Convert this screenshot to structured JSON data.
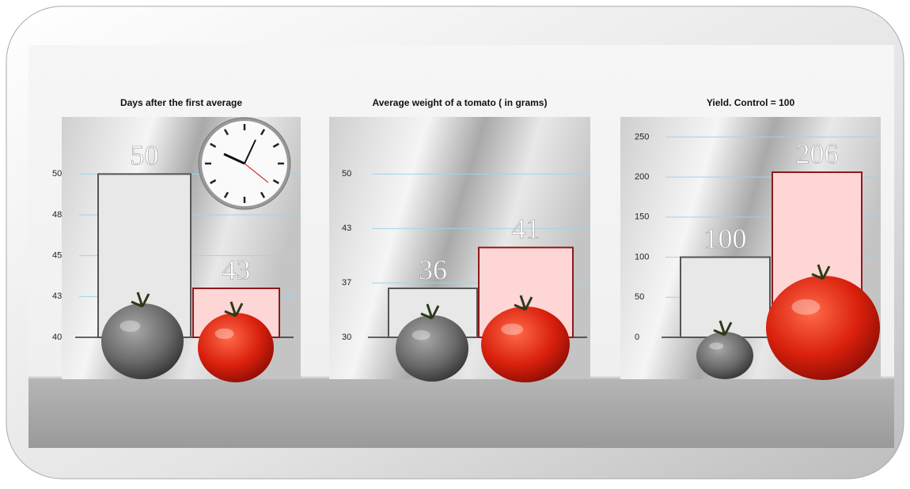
{
  "chart_data": [
    {
      "type": "bar",
      "title": "Days after the first average",
      "categories": [
        null,
        null
      ],
      "values": [
        50,
        43
      ],
      "colors": [
        "#e8e8e8",
        "#ffd6d6"
      ],
      "edge_colors": [
        "#555555",
        "#8b1a1a"
      ],
      "ylim": [
        40,
        53.5
      ],
      "yticks": [
        40,
        {
          "value": 42.5,
          "label": "43"
        },
        45,
        {
          "value": 47.5,
          "label": "48"
        },
        50
      ],
      "grid": true
    },
    {
      "type": "bar",
      "title": "Average weight of a tomato ( in grams)",
      "categories": [
        null,
        null
      ],
      "values": [
        36,
        41
      ],
      "colors": [
        "#e8e8e8",
        "#ffd6d6"
      ],
      "edge_colors": [
        "#555555",
        "#8b1a1a"
      ],
      "ylim": [
        30,
        57
      ],
      "yticks": [
        30,
        {
          "value": 36.67,
          "label": "37"
        },
        {
          "value": 43.33,
          "label": "43"
        },
        50
      ],
      "grid": true
    },
    {
      "type": "bar",
      "title": "Yield. Control = 100",
      "categories": [
        null,
        null
      ],
      "values": [
        100,
        206
      ],
      "colors": [
        "#e8e8e8",
        "#ffd6d6"
      ],
      "edge_colors": [
        "#555555",
        "#8b1a1a"
      ],
      "ylim": [
        0,
        275
      ],
      "yticks": [
        0,
        50,
        100,
        150,
        200,
        250
      ],
      "grid": true
    }
  ]
}
